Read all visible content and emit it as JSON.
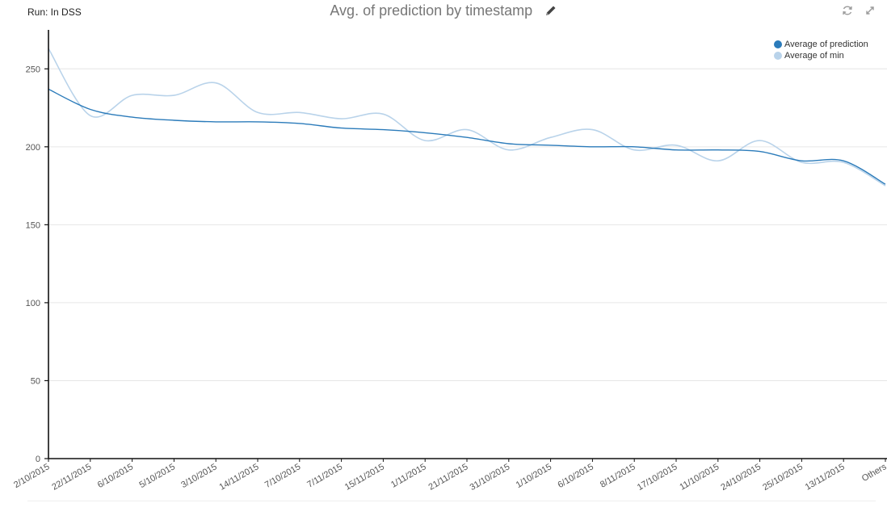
{
  "header": {
    "run_label": "Run: In DSS",
    "title": "Avg. of prediction by timestamp"
  },
  "icons": {
    "edit": "pencil-icon",
    "refresh": "refresh-icon",
    "expand": "expand-icon"
  },
  "colors": {
    "prediction": "#2b7bba",
    "min": "#b9d3ea",
    "grid": "#e6e6e6",
    "axis": "#111111"
  },
  "chart_data": {
    "type": "line",
    "title": "Avg. of prediction by timestamp",
    "xlabel": "",
    "ylabel": "",
    "ylim": [
      0,
      275
    ],
    "yticks": [
      0,
      50,
      100,
      150,
      200,
      250
    ],
    "grid": true,
    "legend_position": "top-right",
    "categories": [
      "2/10/2015",
      "22/11/2015",
      "6/10/2015",
      "5/10/2015",
      "3/10/2015",
      "14/11/2015",
      "7/10/2015",
      "7/11/2015",
      "15/11/2015",
      "1/11/2015",
      "21/11/2015",
      "31/10/2015",
      "1/10/2015",
      "6/10/2015",
      "8/11/2015",
      "17/10/2015",
      "11/10/2015",
      "24/10/2015",
      "25/10/2015",
      "13/11/2015",
      "Others"
    ],
    "category_labels": [
      "2/10/2015",
      "22/11/2015",
      "6/10/2015",
      "5/10/2015",
      "3/10/2015",
      "14/11/2015",
      "7/10/2015",
      "7/11/2015",
      "15/11/2015",
      "1/11/2015",
      "21/11/2015",
      "31/10/2015",
      "1/10/2015",
      "6/10/2015",
      "8/11/2015",
      "17/10/2015",
      "11/10/2015",
      "24/10/2015",
      "25/10/2015",
      "13/11/2015",
      "Others"
    ],
    "series": [
      {
        "name": "Average of prediction",
        "values": [
          237,
          224,
          219,
          217,
          216,
          216,
          215,
          212,
          211,
          209,
          206,
          202,
          201,
          200,
          200,
          198,
          198,
          197,
          191,
          191,
          176
        ]
      },
      {
        "name": "Average of min",
        "values": [
          263,
          220,
          233,
          233,
          241,
          222,
          222,
          218,
          221,
          204,
          211,
          198,
          206,
          211,
          198,
          201,
          191,
          204,
          190,
          190,
          175
        ]
      }
    ]
  }
}
